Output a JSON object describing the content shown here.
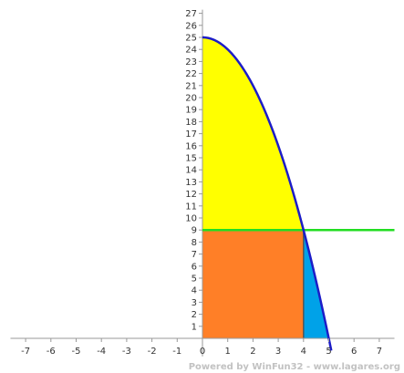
{
  "chart_data": {
    "type": "area",
    "x_ticks": [
      -7,
      -6,
      -5,
      -4,
      -3,
      -2,
      -1,
      0,
      1,
      2,
      3,
      4,
      5,
      6,
      7
    ],
    "y_ticks": [
      1,
      2,
      3,
      4,
      5,
      6,
      7,
      8,
      9,
      10,
      11,
      12,
      13,
      14,
      15,
      16,
      17,
      18,
      19,
      20,
      21,
      22,
      23,
      24,
      25,
      26,
      27
    ],
    "xlim": [
      -7.6,
      7.6
    ],
    "ylim": [
      -1.5,
      27.3
    ],
    "curve": {
      "expression": "y = 25 - x^2",
      "x_from": 0,
      "x_to": 5.1,
      "color": "#1c1cc8"
    },
    "horizontal_line": {
      "y": 9,
      "x_from": 0,
      "x_to": 7.6,
      "color": "#22dd22"
    },
    "regions": [
      {
        "kind": "under-curve-above-line",
        "x_from": 0,
        "x_to": 4,
        "fill": "#ffff00"
      },
      {
        "kind": "rectangle",
        "x_from": 0,
        "x_to": 4,
        "y_from": 0,
        "y_to": 9,
        "fill": "#ff7f27"
      },
      {
        "kind": "under-curve",
        "x_from": 4,
        "x_to": 5,
        "fill": "#00a2e8"
      }
    ],
    "grid": false
  },
  "footer": {
    "watermark": "Powered by WinFun32 - www.lagares.org"
  }
}
